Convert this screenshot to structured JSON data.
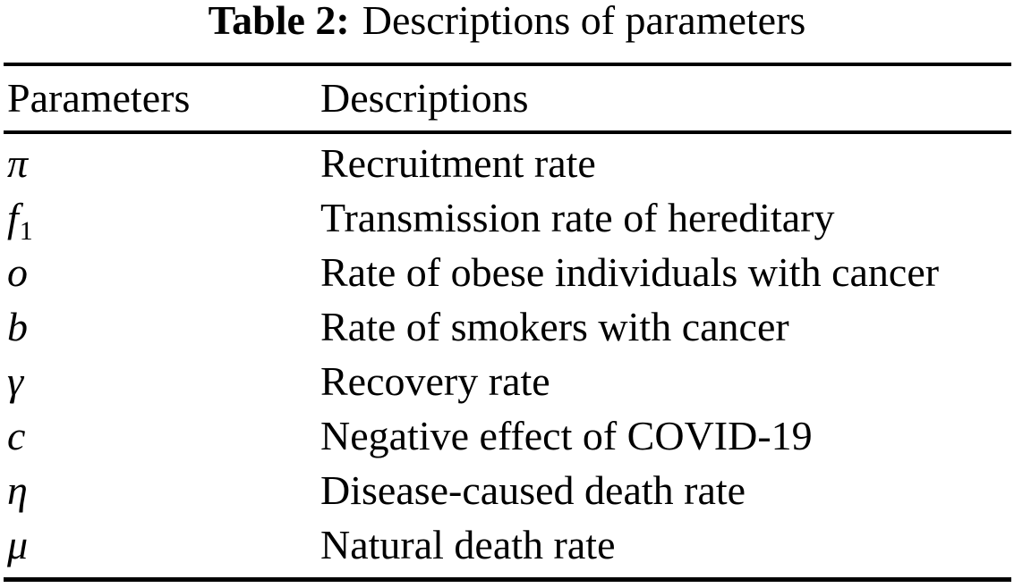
{
  "caption": {
    "label": "Table 2:",
    "text": "Descriptions of parameters"
  },
  "table": {
    "columns": [
      "Parameters",
      "Descriptions"
    ],
    "rows": [
      {
        "symbol": "π",
        "sub": "",
        "description": "Recruitment rate"
      },
      {
        "symbol": "f",
        "sub": "1",
        "description": "Transmission rate of hereditary"
      },
      {
        "symbol": "o",
        "sub": "",
        "description": "Rate of obese individuals with cancer"
      },
      {
        "symbol": "b",
        "sub": "",
        "description": "Rate of smokers with cancer"
      },
      {
        "symbol": "γ",
        "sub": "",
        "description": "Recovery rate"
      },
      {
        "symbol": "c",
        "sub": "",
        "description": "Negative effect of COVID-19"
      },
      {
        "symbol": "η",
        "sub": "",
        "description": "Disease-caused death rate"
      },
      {
        "symbol": "μ",
        "sub": "",
        "description": "Natural death rate"
      }
    ]
  },
  "colors": {
    "text": "#000000",
    "rule": "#000000",
    "background": "#ffffff"
  }
}
